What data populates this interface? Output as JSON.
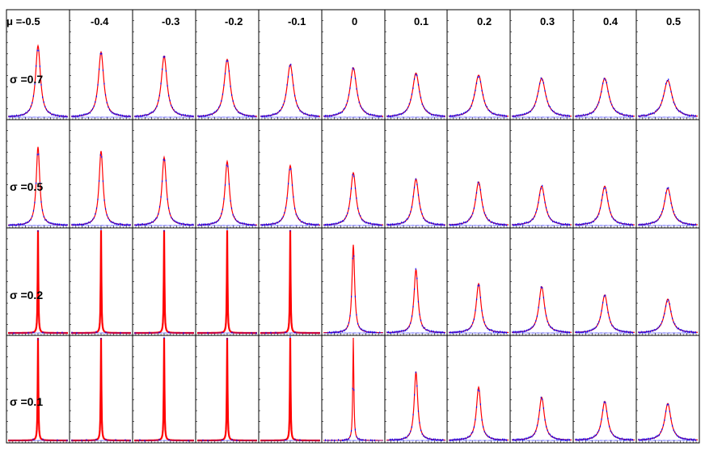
{
  "chart_data": {
    "type": "histogram-grid",
    "column_labels": [
      "μ =-0.5",
      "-0.4",
      "-0.3",
      "-0.2",
      "-0.1",
      "0",
      "0.1",
      "0.2",
      "0.3",
      "0.4",
      "0.5"
    ],
    "row_labels": [
      "σ =0.7",
      "σ =0.5",
      "σ =0.2",
      "σ =0.1"
    ],
    "mu_values": [
      -0.5,
      -0.4,
      -0.3,
      -0.2,
      -0.1,
      0,
      0.1,
      0.2,
      0.3,
      0.4,
      0.5
    ],
    "sigma_values": [
      0.7,
      0.5,
      0.2,
      0.1
    ],
    "peak_heights": [
      [
        0.68,
        0.62,
        0.58,
        0.55,
        0.5,
        0.47,
        0.42,
        0.4,
        0.37,
        0.37,
        0.35
      ],
      [
        0.76,
        0.72,
        0.66,
        0.62,
        0.58,
        0.51,
        0.45,
        0.42,
        0.38,
        0.38,
        0.36
      ],
      [
        1.0,
        1.0,
        1.0,
        1.0,
        1.0,
        0.86,
        0.62,
        0.48,
        0.45,
        0.37,
        0.33
      ],
      [
        1.0,
        1.0,
        1.0,
        1.0,
        1.0,
        1.0,
        0.67,
        0.52,
        0.42,
        0.38,
        0.36
      ]
    ],
    "peak_widths": [
      [
        0.055,
        0.06,
        0.065,
        0.068,
        0.072,
        0.075,
        0.08,
        0.085,
        0.09,
        0.09,
        0.095
      ],
      [
        0.04,
        0.045,
        0.05,
        0.05,
        0.055,
        0.06,
        0.065,
        0.07,
        0.075,
        0.075,
        0.08
      ],
      [
        0.006,
        0.006,
        0.006,
        0.006,
        0.006,
        0.03,
        0.045,
        0.055,
        0.065,
        0.07,
        0.075
      ],
      [
        0.004,
        0.004,
        0.004,
        0.004,
        0.004,
        0.012,
        0.04,
        0.05,
        0.06,
        0.065,
        0.07
      ]
    ],
    "peak_position": 0.5,
    "x_range": [
      -5,
      5
    ],
    "grid": false,
    "colors": {
      "data_points": "#0000ff",
      "fit_curve": "#ff0000",
      "frame": "#000000",
      "background": "#ffffff"
    }
  }
}
